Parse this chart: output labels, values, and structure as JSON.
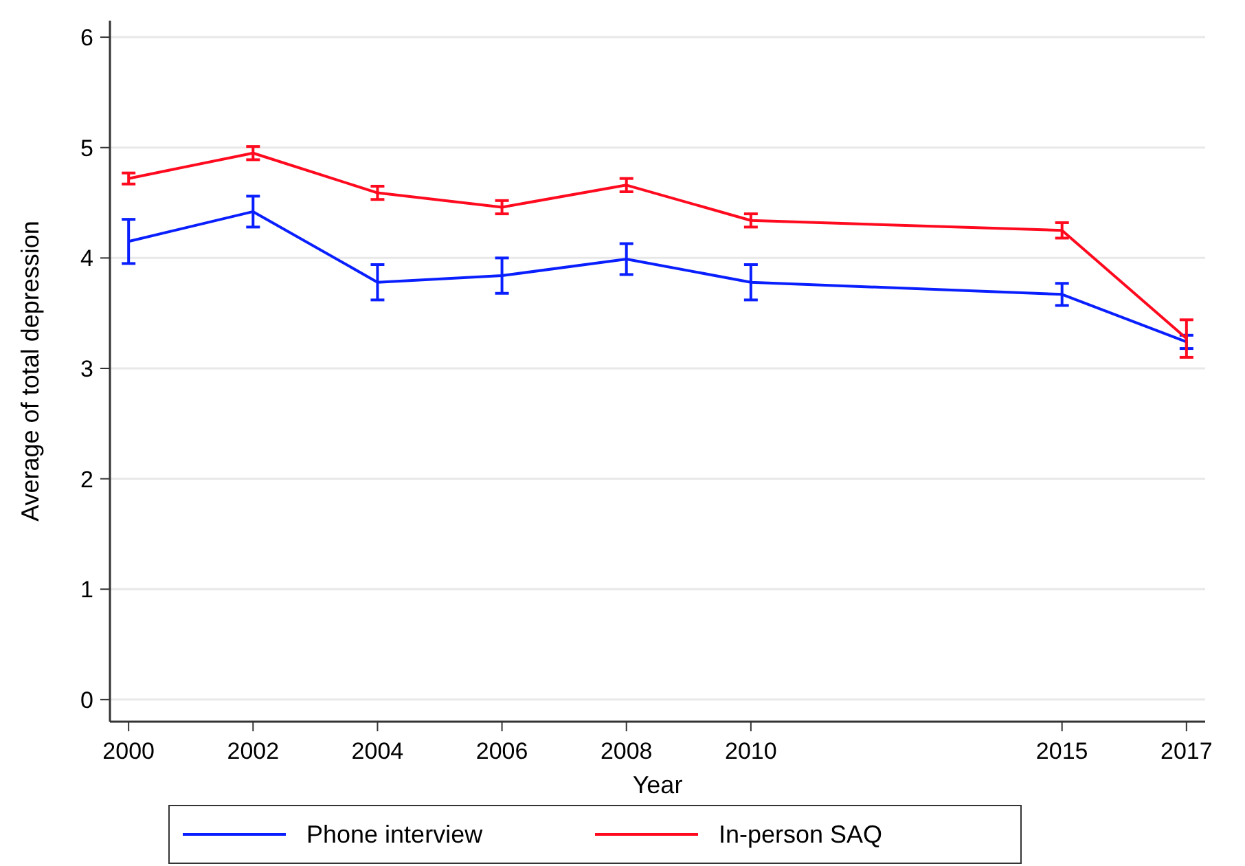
{
  "chart_data": {
    "type": "line",
    "xlabel": "Year",
    "ylabel": "Average of total depression",
    "x": [
      2000,
      2002,
      2004,
      2006,
      2008,
      2010,
      2015,
      2017
    ],
    "series": [
      {
        "name": "Phone interview",
        "color": "#0a1fff",
        "values": [
          4.15,
          4.42,
          3.78,
          3.84,
          3.99,
          3.78,
          3.67,
          3.24
        ],
        "errors": [
          0.2,
          0.14,
          0.16,
          0.16,
          0.14,
          0.16,
          0.1,
          0.06
        ]
      },
      {
        "name": "In-person SAQ",
        "color": "#ff0a1e",
        "values": [
          4.72,
          4.95,
          4.59,
          4.46,
          4.66,
          4.34,
          4.25,
          3.27
        ],
        "errors": [
          0.05,
          0.06,
          0.06,
          0.06,
          0.06,
          0.06,
          0.07,
          0.17
        ]
      }
    ],
    "xlim": [
      1999.7,
      2017.3
    ],
    "xticks": [
      2000,
      2002,
      2004,
      2006,
      2008,
      2010,
      2015,
      2017
    ],
    "ylim": [
      -0.2,
      6.15
    ],
    "yticks": [
      0,
      1,
      2,
      3,
      4,
      5,
      6
    ],
    "grid": "y",
    "legend": "bottom",
    "marker": "none",
    "line_style": "solid"
  }
}
